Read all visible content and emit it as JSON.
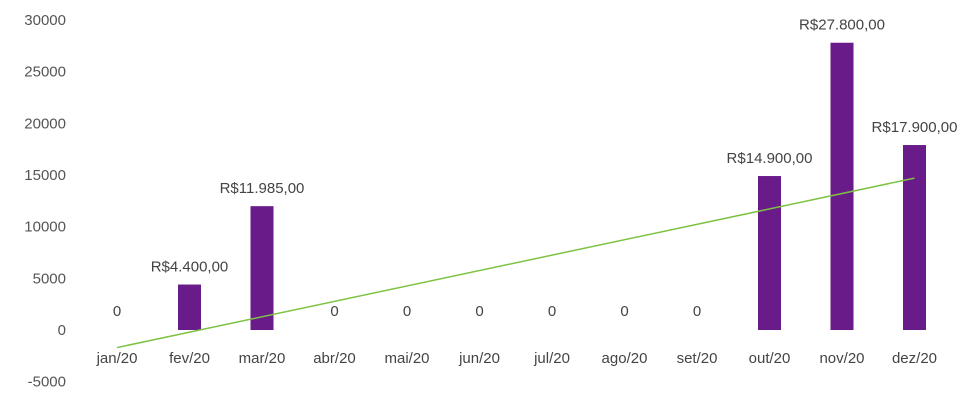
{
  "chart_data": {
    "type": "bar",
    "title": "",
    "xlabel": "",
    "ylabel": "",
    "categories": [
      "jan/20",
      "fev/20",
      "mar/20",
      "abr/20",
      "mai/20",
      "jun/20",
      "jul/20",
      "ago/20",
      "set/20",
      "out/20",
      "nov/20",
      "dez/20"
    ],
    "series": [
      {
        "values": [
          0,
          4400,
          11985,
          0,
          0,
          0,
          0,
          0,
          0,
          14900,
          27800,
          17900
        ],
        "labels": [
          "0",
          "R$4.400,00",
          "R$11.985,00",
          "0",
          "0",
          "0",
          "0",
          "0",
          "0",
          "R$14.900,00",
          "R$27.800,00",
          "R$17.900,00"
        ],
        "color": "#6a1b8a"
      }
    ],
    "trendline": {
      "type": "linear",
      "color": "#7dc242",
      "start": -1700,
      "end": 14700
    },
    "ylim": [
      -5000,
      30000
    ],
    "yticks": [
      "-5000",
      "0",
      "5000",
      "10000",
      "15000",
      "20000",
      "25000",
      "30000"
    ],
    "ytick_values": [
      -5000,
      0,
      5000,
      10000,
      15000,
      20000,
      25000,
      30000
    ],
    "grid": false,
    "legend": "none"
  }
}
